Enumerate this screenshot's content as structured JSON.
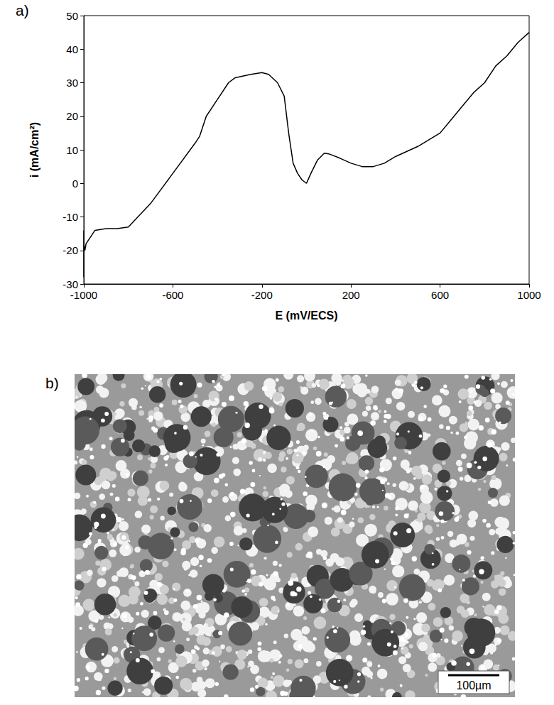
{
  "chart_data": {
    "type": "line",
    "panel_label": "a)",
    "x_label": "E (mV/ECS)",
    "y_label": "i (mA/cm²)",
    "x": [
      -1000,
      -1000,
      -1000,
      -995,
      -990,
      -950,
      -900,
      -850,
      -800,
      -700,
      -600,
      -500,
      -480,
      -450,
      -400,
      -350,
      -320,
      -250,
      -200,
      -170,
      -130,
      -100,
      -80,
      -60,
      -40,
      -20,
      0,
      20,
      50,
      80,
      100,
      150,
      200,
      250,
      300,
      350,
      400,
      500,
      600,
      650,
      700,
      750,
      800,
      850,
      900,
      950,
      1000
    ],
    "values": [
      -14,
      -28,
      -18,
      -20,
      -18,
      -14,
      -13.5,
      -13.5,
      -13,
      -6,
      3,
      12,
      14,
      20,
      25,
      30,
      31.5,
      32.5,
      33,
      32.5,
      30,
      26,
      15,
      6,
      3,
      1,
      0,
      3,
      7,
      9,
      8.8,
      7.5,
      6,
      5,
      5,
      6,
      8,
      11,
      15,
      19,
      23,
      27,
      30,
      35,
      38,
      42,
      45
    ],
    "color": "#000000",
    "xlim": [
      -1000,
      1000
    ],
    "xticks": [
      -1000,
      -600,
      -200,
      200,
      600,
      1000
    ],
    "ylim": [
      -30,
      50
    ],
    "yticks": [
      -30,
      -20,
      -10,
      0,
      10,
      20,
      30,
      40,
      50
    ],
    "grid": false
  },
  "image_panel": {
    "panel_label": "b)",
    "scale_bar": "100µm"
  }
}
